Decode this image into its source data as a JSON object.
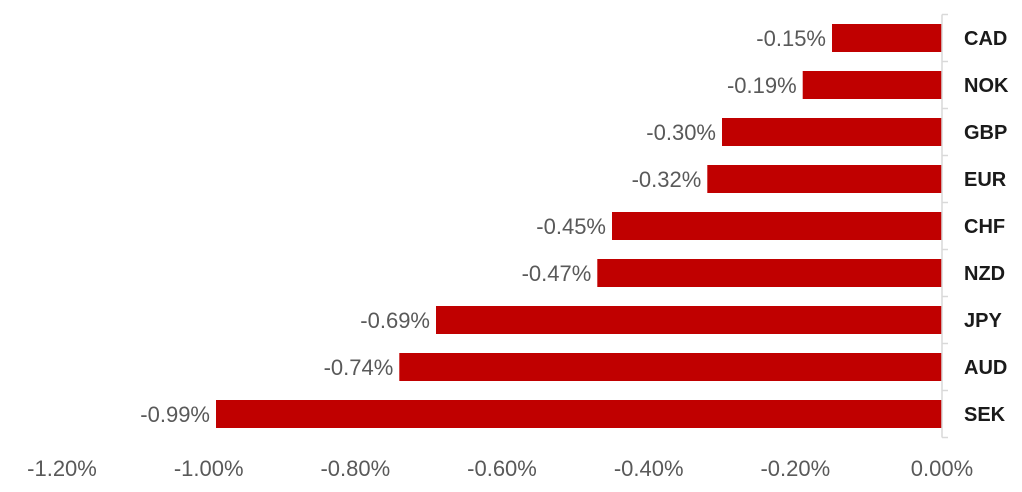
{
  "chart_data": {
    "type": "bar",
    "orientation": "horizontal",
    "categories": [
      "CAD",
      "NOK",
      "GBP",
      "EUR",
      "CHF",
      "NZD",
      "JPY",
      "AUD",
      "SEK"
    ],
    "values": [
      -0.15,
      -0.19,
      -0.3,
      -0.32,
      -0.45,
      -0.47,
      -0.69,
      -0.74,
      -0.99
    ],
    "data_labels": [
      "-0.15%",
      "-0.19%",
      "-0.30%",
      "-0.32%",
      "-0.45%",
      "-0.47%",
      "-0.69%",
      "-0.74%",
      "-0.99%"
    ],
    "xlim": [
      -1.2,
      0
    ],
    "x_ticks": [
      -1.2,
      -1.0,
      -0.8,
      -0.6,
      -0.4,
      -0.2,
      0
    ],
    "x_tick_labels": [
      "-1.20%",
      "-1.00%",
      "-0.80%",
      "-0.60%",
      "-0.40%",
      "-0.20%",
      "0.00%"
    ],
    "category_axis_side": "right",
    "grid": false,
    "legend": "none",
    "title": "",
    "xlabel": "",
    "ylabel": "",
    "colors": {
      "bar": "#c00000",
      "axis": "#d9d9d9",
      "label": "#595959",
      "category": "#1a1a1a"
    }
  }
}
